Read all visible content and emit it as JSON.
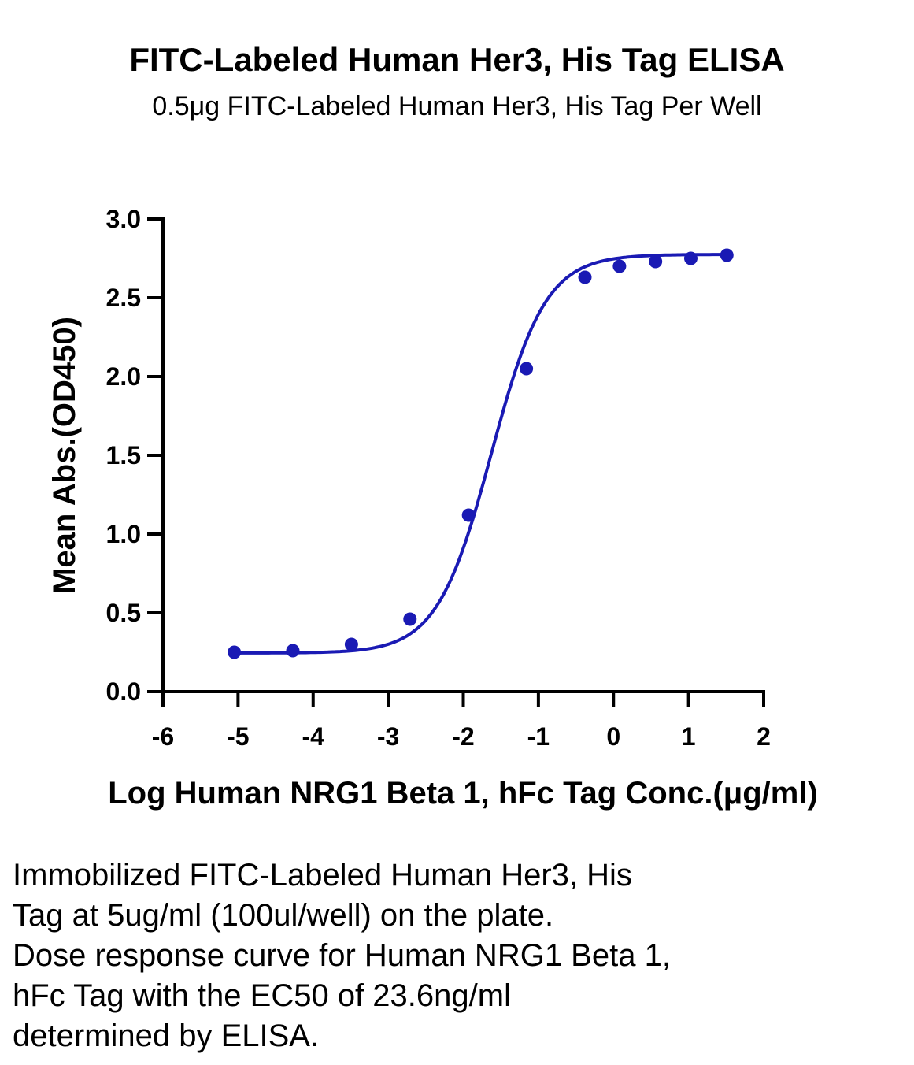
{
  "chart_data": {
    "type": "scatter",
    "title": "FITC-Labeled Human Her3, His Tag ELISA",
    "subtitle": "0.5μg FITC-Labeled Human Her3, His Tag Per Well",
    "xlabel": "Log Human NRG1 Beta 1, hFc Tag Conc.(μg/ml)",
    "ylabel": "Mean Abs.(OD450)",
    "xlim": [
      -6,
      2
    ],
    "ylim": [
      0,
      3.0
    ],
    "xticks": [
      "-6",
      "-5",
      "-4",
      "-3",
      "-2",
      "-1",
      "0",
      "1",
      "2"
    ],
    "yticks": [
      "0.0",
      "0.5",
      "1.0",
      "1.5",
      "2.0",
      "2.5",
      "3.0"
    ],
    "grid": false,
    "colors": {
      "series": "#1a1ab4"
    },
    "fit": "four-parameter logistic",
    "series": [
      {
        "x": [
          -5.05,
          -4.27,
          -3.49,
          -2.71,
          -1.93,
          -1.16,
          -0.38,
          0.08,
          0.56,
          1.03,
          1.51
        ],
        "y": [
          0.25,
          0.26,
          0.3,
          0.46,
          1.12,
          2.05,
          2.63,
          2.7,
          2.73,
          2.75,
          2.77
        ]
      }
    ]
  },
  "caption": [
    "Immobilized FITC-Labeled Human Her3, His",
    "Tag at 5ug/ml (100ul/well) on the plate.",
    "Dose response curve for Human NRG1 Beta 1,",
    "hFc Tag with the EC50 of 23.6ng/ml",
    "determined by ELISA."
  ]
}
